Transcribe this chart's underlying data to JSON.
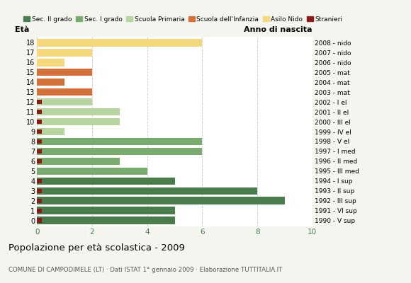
{
  "ages": [
    18,
    17,
    16,
    15,
    14,
    13,
    12,
    11,
    10,
    9,
    8,
    7,
    6,
    5,
    4,
    3,
    2,
    1,
    0
  ],
  "anno_nascita": [
    "1990 - V sup",
    "1991 - VI sup",
    "1992 - III sup",
    "1993 - II sup",
    "1994 - I sup",
    "1995 - III med",
    "1996 - II med",
    "1997 - I med",
    "1998 - V el",
    "1999 - IV el",
    "2000 - III el",
    "2001 - II el",
    "2002 - I el",
    "2003 - mat",
    "2004 - mat",
    "2005 - mat",
    "2006 - nido",
    "2007 - nido",
    "2008 - nido"
  ],
  "sec2": [
    5,
    5,
    9,
    8,
    5,
    0,
    0,
    0,
    0,
    0,
    0,
    0,
    0,
    0,
    0,
    0,
    0,
    0,
    0
  ],
  "sec1": [
    0,
    0,
    0,
    0,
    0,
    4,
    3,
    6,
    6,
    0,
    0,
    0,
    0,
    0,
    0,
    0,
    0,
    0,
    0
  ],
  "primaria": [
    0,
    0,
    0,
    0,
    0,
    0,
    0,
    0,
    0,
    1,
    3,
    3,
    2,
    0,
    0,
    0,
    0,
    0,
    0
  ],
  "infanzia": [
    0,
    0,
    0,
    0,
    0,
    0,
    0,
    0,
    0,
    0,
    0,
    0,
    0,
    2,
    1,
    2,
    0,
    0,
    0
  ],
  "nido": [
    0,
    0,
    0,
    0,
    0,
    0,
    0,
    0,
    0,
    0,
    0,
    0,
    0,
    0,
    0,
    0,
    1,
    2,
    6
  ],
  "stranieri": [
    1,
    1,
    1,
    1,
    1,
    0,
    1,
    1,
    1,
    1,
    1,
    1,
    1,
    0,
    0,
    0,
    0,
    0,
    0
  ],
  "color_sec2": "#4a7c4e",
  "color_sec1": "#7aab6e",
  "color_primaria": "#b8d4a0",
  "color_infanzia": "#d4713a",
  "color_nido": "#f5d87e",
  "color_stranieri": "#8b1a1a",
  "title": "Popolazione per età scolastica - 2009",
  "subtitle": "COMUNE DI CAMPODIMELE (LT) · Dati ISTAT 1° gennaio 2009 · Elaborazione TUTTITALIA.IT",
  "ylabel_eta": "Età",
  "ylabel_anno": "Anno di nascita",
  "xlim": [
    0,
    10
  ],
  "xticks": [
    0,
    2,
    4,
    6,
    8,
    10
  ],
  "legend_labels": [
    "Sec. II grado",
    "Sec. I grado",
    "Scuola Primaria",
    "Scuola dell'Infanzia",
    "Asilo Nido",
    "Stranieri"
  ],
  "bg_color": "#f5f5f0",
  "plot_bg": "#ffffff",
  "bar_height": 0.75
}
